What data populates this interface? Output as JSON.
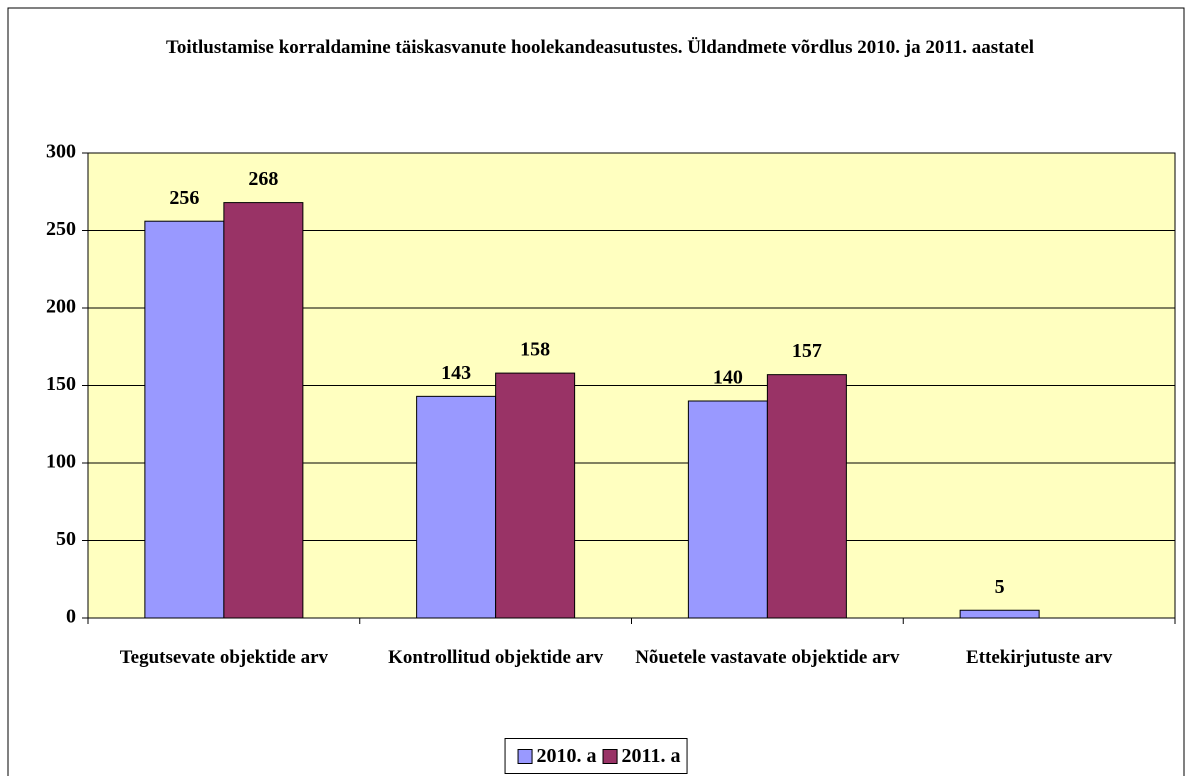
{
  "chart_data": {
    "type": "bar",
    "title": "Toitlustamise korraldamine täiskasvanute hoolekandeasutustes. Üldandmete võrdlus 2010. ja 2011. aastatel",
    "categories": [
      "Tegutsevate objektide arv",
      "Kontrollitud objektide arv",
      "Nõuetele vastavate objektide arv",
      "Ettekirjutuste arv"
    ],
    "series": [
      {
        "name": "2010. a",
        "color": "#9999ff",
        "values": [
          256,
          143,
          140,
          5
        ]
      },
      {
        "name": "2011. a",
        "color": "#993366",
        "values": [
          268,
          158,
          157,
          null
        ]
      }
    ],
    "ylim": [
      0,
      300
    ],
    "yticks": [
      0,
      50,
      100,
      150,
      200,
      250,
      300
    ],
    "grid": true,
    "legend": "bottom"
  }
}
